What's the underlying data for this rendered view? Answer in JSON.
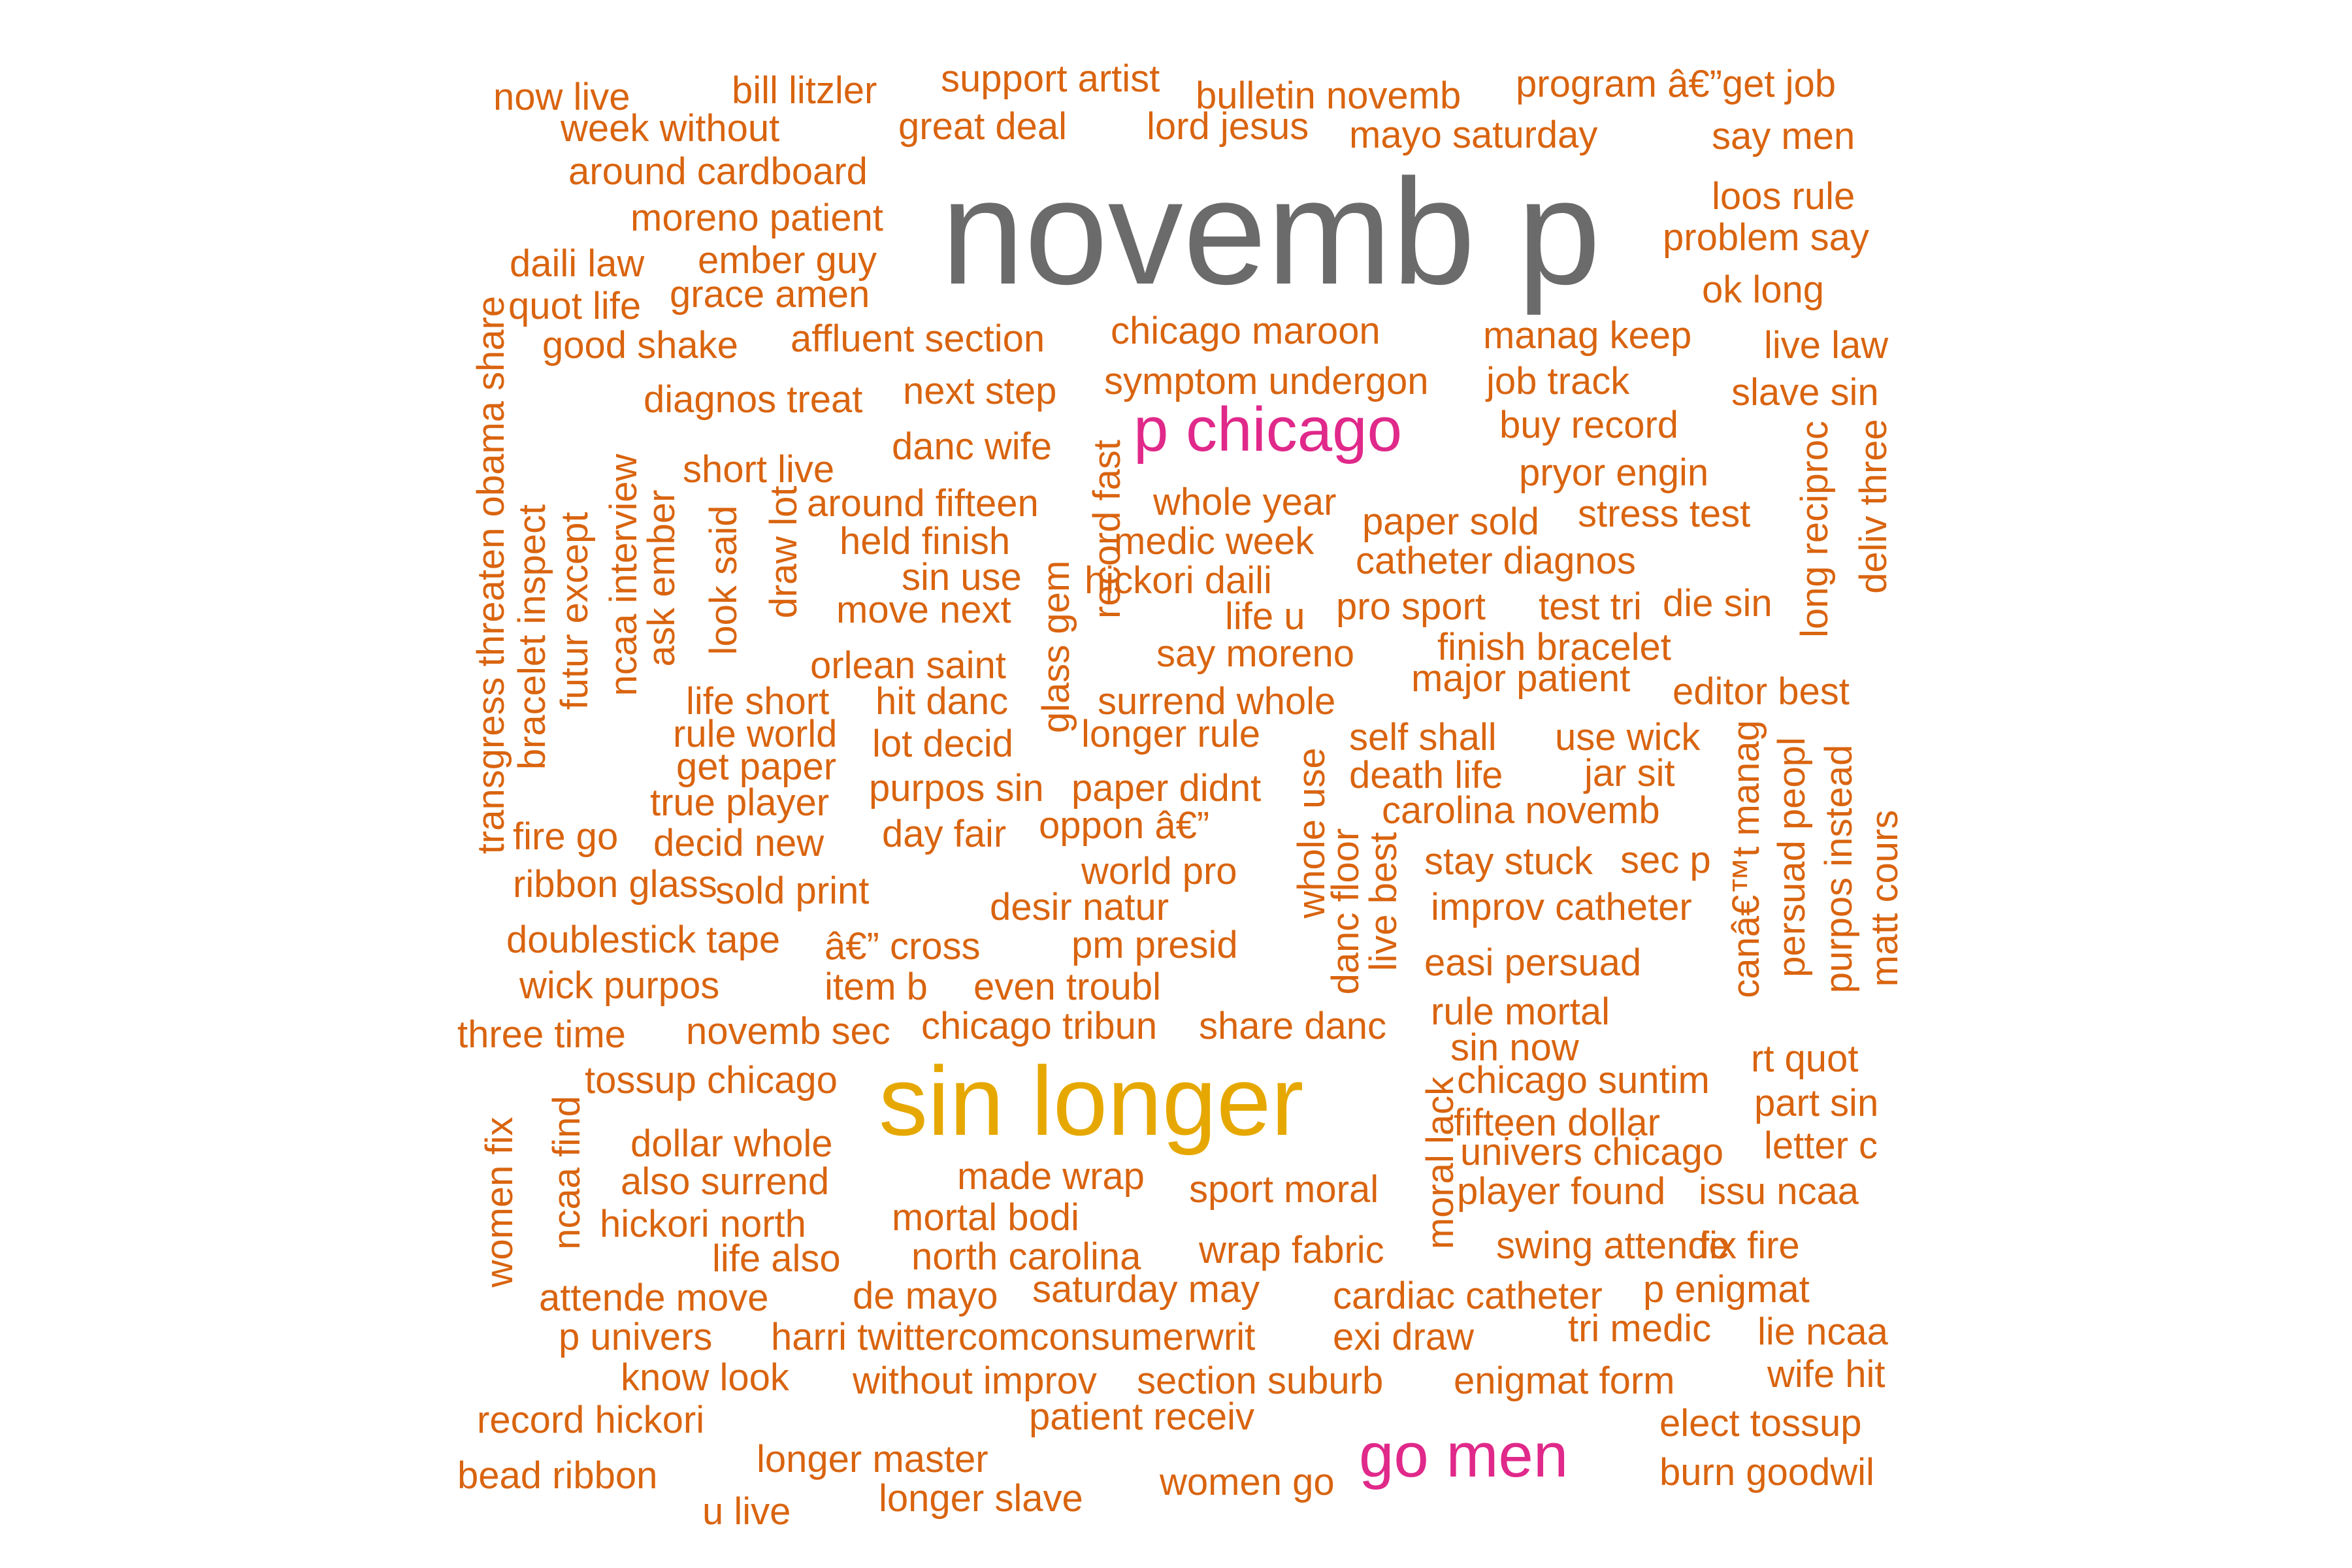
{
  "colors": {
    "primary": "#6b6b6b",
    "secondary": "#e6a800",
    "tertiary": "#e0298a",
    "small": "#d9640f",
    "background": "#ffffff"
  },
  "words": [
    {
      "text": "novemb p",
      "color": "primary",
      "rotate": false
    },
    {
      "text": "sin longer",
      "color": "secondary",
      "rotate": false
    },
    {
      "text": "p chicago",
      "color": "tertiary",
      "rotate": false
    },
    {
      "text": "go men",
      "color": "tertiary",
      "rotate": false
    },
    {
      "text": "now live",
      "color": "small",
      "rotate": false
    },
    {
      "text": "bill litzler",
      "color": "small",
      "rotate": false
    },
    {
      "text": "support artist",
      "color": "small",
      "rotate": false
    },
    {
      "text": "bulletin novemb",
      "color": "small",
      "rotate": false
    },
    {
      "text": "program â€”get job",
      "color": "small",
      "rotate": false
    },
    {
      "text": "week without",
      "color": "small",
      "rotate": false
    },
    {
      "text": "great deal",
      "color": "small",
      "rotate": false
    },
    {
      "text": "lord jesus",
      "color": "small",
      "rotate": false
    },
    {
      "text": "mayo saturday",
      "color": "small",
      "rotate": false
    },
    {
      "text": "say men",
      "color": "small",
      "rotate": false
    },
    {
      "text": "around cardboard",
      "color": "small",
      "rotate": false
    },
    {
      "text": "loos rule",
      "color": "small",
      "rotate": false
    },
    {
      "text": "moreno patient",
      "color": "small",
      "rotate": false
    },
    {
      "text": "problem say",
      "color": "small",
      "rotate": false
    },
    {
      "text": "daili law",
      "color": "small",
      "rotate": false
    },
    {
      "text": "ember guy",
      "color": "small",
      "rotate": false
    },
    {
      "text": "grace amen",
      "color": "small",
      "rotate": false
    },
    {
      "text": "ok long",
      "color": "small",
      "rotate": false
    },
    {
      "text": "quot life",
      "color": "small",
      "rotate": false
    },
    {
      "text": "affluent section",
      "color": "small",
      "rotate": false
    },
    {
      "text": "chicago maroon",
      "color": "small",
      "rotate": false
    },
    {
      "text": "manag keep",
      "color": "small",
      "rotate": false
    },
    {
      "text": "good shake",
      "color": "small",
      "rotate": false
    },
    {
      "text": "live law",
      "color": "small",
      "rotate": false
    },
    {
      "text": "symptom undergon",
      "color": "small",
      "rotate": false
    },
    {
      "text": "job track",
      "color": "small",
      "rotate": false
    },
    {
      "text": "diagnos treat",
      "color": "small",
      "rotate": false
    },
    {
      "text": "next step",
      "color": "small",
      "rotate": false
    },
    {
      "text": "slave sin",
      "color": "small",
      "rotate": false
    },
    {
      "text": "buy record",
      "color": "small",
      "rotate": false
    },
    {
      "text": "danc wife",
      "color": "small",
      "rotate": false
    },
    {
      "text": "short live",
      "color": "small",
      "rotate": false
    },
    {
      "text": "pryor engin",
      "color": "small",
      "rotate": false
    },
    {
      "text": "around fifteen",
      "color": "small",
      "rotate": false
    },
    {
      "text": "whole year",
      "color": "small",
      "rotate": false
    },
    {
      "text": "stress test",
      "color": "small",
      "rotate": false
    },
    {
      "text": "paper sold",
      "color": "small",
      "rotate": false
    },
    {
      "text": "held finish",
      "color": "small",
      "rotate": false
    },
    {
      "text": "medic week",
      "color": "small",
      "rotate": false
    },
    {
      "text": "catheter diagnos",
      "color": "small",
      "rotate": false
    },
    {
      "text": "sin use",
      "color": "small",
      "rotate": false
    },
    {
      "text": "hickori daili",
      "color": "small",
      "rotate": false
    },
    {
      "text": "move next",
      "color": "small",
      "rotate": false
    },
    {
      "text": "life u",
      "color": "small",
      "rotate": false
    },
    {
      "text": "pro sport",
      "color": "small",
      "rotate": false
    },
    {
      "text": "test tri",
      "color": "small",
      "rotate": false
    },
    {
      "text": "die sin",
      "color": "small",
      "rotate": false
    },
    {
      "text": "say moreno",
      "color": "small",
      "rotate": false
    },
    {
      "text": "finish bracelet",
      "color": "small",
      "rotate": false
    },
    {
      "text": "orlean saint",
      "color": "small",
      "rotate": false
    },
    {
      "text": "major patient",
      "color": "small",
      "rotate": false
    },
    {
      "text": "life short",
      "color": "small",
      "rotate": false
    },
    {
      "text": "hit danc",
      "color": "small",
      "rotate": false
    },
    {
      "text": "surrend whole",
      "color": "small",
      "rotate": false
    },
    {
      "text": "editor best",
      "color": "small",
      "rotate": false
    },
    {
      "text": "rule world",
      "color": "small",
      "rotate": false
    },
    {
      "text": "longer rule",
      "color": "small",
      "rotate": false
    },
    {
      "text": "self shall",
      "color": "small",
      "rotate": false
    },
    {
      "text": "use wick",
      "color": "small",
      "rotate": false
    },
    {
      "text": "get paper",
      "color": "small",
      "rotate": false
    },
    {
      "text": "lot decid",
      "color": "small",
      "rotate": false
    },
    {
      "text": "death life",
      "color": "small",
      "rotate": false
    },
    {
      "text": "jar sit",
      "color": "small",
      "rotate": false
    },
    {
      "text": "true player",
      "color": "small",
      "rotate": false
    },
    {
      "text": "purpos sin",
      "color": "small",
      "rotate": false
    },
    {
      "text": "paper didnt",
      "color": "small",
      "rotate": false
    },
    {
      "text": "carolina novemb",
      "color": "small",
      "rotate": false
    },
    {
      "text": "oppon â€”",
      "color": "small",
      "rotate": false
    },
    {
      "text": "fire go",
      "color": "small",
      "rotate": false
    },
    {
      "text": "decid new",
      "color": "small",
      "rotate": false
    },
    {
      "text": "day fair",
      "color": "small",
      "rotate": false
    },
    {
      "text": "stay stuck",
      "color": "small",
      "rotate": false
    },
    {
      "text": "sec p",
      "color": "small",
      "rotate": false
    },
    {
      "text": "ribbon glass",
      "color": "small",
      "rotate": false
    },
    {
      "text": "sold print",
      "color": "small",
      "rotate": false
    },
    {
      "text": "world pro",
      "color": "small",
      "rotate": false
    },
    {
      "text": "desir natur",
      "color": "small",
      "rotate": false
    },
    {
      "text": "improv catheter",
      "color": "small",
      "rotate": false
    },
    {
      "text": "doublestick tape",
      "color": "small",
      "rotate": false
    },
    {
      "text": "â€” cross",
      "color": "small",
      "rotate": false
    },
    {
      "text": "pm presid",
      "color": "small",
      "rotate": false
    },
    {
      "text": "easi persuad",
      "color": "small",
      "rotate": false
    },
    {
      "text": "wick purpos",
      "color": "small",
      "rotate": false
    },
    {
      "text": "item b",
      "color": "small",
      "rotate": false
    },
    {
      "text": "even troubl",
      "color": "small",
      "rotate": false
    },
    {
      "text": "rule mortal",
      "color": "small",
      "rotate": false
    },
    {
      "text": "three time",
      "color": "small",
      "rotate": false
    },
    {
      "text": "novemb sec",
      "color": "small",
      "rotate": false
    },
    {
      "text": "chicago tribun",
      "color": "small",
      "rotate": false
    },
    {
      "text": "share danc",
      "color": "small",
      "rotate": false
    },
    {
      "text": "sin now",
      "color": "small",
      "rotate": false
    },
    {
      "text": "rt quot",
      "color": "small",
      "rotate": false
    },
    {
      "text": "tossup chicago",
      "color": "small",
      "rotate": false
    },
    {
      "text": "chicago suntim",
      "color": "small",
      "rotate": false
    },
    {
      "text": "part sin",
      "color": "small",
      "rotate": false
    },
    {
      "text": "fifteen dollar",
      "color": "small",
      "rotate": false
    },
    {
      "text": "dollar whole",
      "color": "small",
      "rotate": false
    },
    {
      "text": "univers chicago",
      "color": "small",
      "rotate": false
    },
    {
      "text": "letter c",
      "color": "small",
      "rotate": false
    },
    {
      "text": "also surrend",
      "color": "small",
      "rotate": false
    },
    {
      "text": "made wrap",
      "color": "small",
      "rotate": false
    },
    {
      "text": "sport moral",
      "color": "small",
      "rotate": false
    },
    {
      "text": "player found",
      "color": "small",
      "rotate": false
    },
    {
      "text": "issu ncaa",
      "color": "small",
      "rotate": false
    },
    {
      "text": "hickori north",
      "color": "small",
      "rotate": false
    },
    {
      "text": "mortal bodi",
      "color": "small",
      "rotate": false
    },
    {
      "text": "life also",
      "color": "small",
      "rotate": false
    },
    {
      "text": "north carolina",
      "color": "small",
      "rotate": false
    },
    {
      "text": "wrap fabric",
      "color": "small",
      "rotate": false
    },
    {
      "text": "swing attende",
      "color": "small",
      "rotate": false
    },
    {
      "text": "fix fire",
      "color": "small",
      "rotate": false
    },
    {
      "text": "attende move",
      "color": "small",
      "rotate": false
    },
    {
      "text": "de mayo",
      "color": "small",
      "rotate": false
    },
    {
      "text": "saturday may",
      "color": "small",
      "rotate": false
    },
    {
      "text": "cardiac catheter",
      "color": "small",
      "rotate": false
    },
    {
      "text": "p enigmat",
      "color": "small",
      "rotate": false
    },
    {
      "text": "p univers",
      "color": "small",
      "rotate": false
    },
    {
      "text": "harri twittercomconsumerwrit",
      "color": "small",
      "rotate": false
    },
    {
      "text": "exi draw",
      "color": "small",
      "rotate": false
    },
    {
      "text": "tri medic",
      "color": "small",
      "rotate": false
    },
    {
      "text": "lie ncaa",
      "color": "small",
      "rotate": false
    },
    {
      "text": "know look",
      "color": "small",
      "rotate": false
    },
    {
      "text": "without improv",
      "color": "small",
      "rotate": false
    },
    {
      "text": "section suburb",
      "color": "small",
      "rotate": false
    },
    {
      "text": "enigmat form",
      "color": "small",
      "rotate": false
    },
    {
      "text": "wife hit",
      "color": "small",
      "rotate": false
    },
    {
      "text": "record hickori",
      "color": "small",
      "rotate": false
    },
    {
      "text": "patient receiv",
      "color": "small",
      "rotate": false
    },
    {
      "text": "elect tossup",
      "color": "small",
      "rotate": false
    },
    {
      "text": "longer master",
      "color": "small",
      "rotate": false
    },
    {
      "text": "bead ribbon",
      "color": "small",
      "rotate": false
    },
    {
      "text": "women go",
      "color": "small",
      "rotate": false
    },
    {
      "text": "burn goodwil",
      "color": "small",
      "rotate": false
    },
    {
      "text": "longer slave",
      "color": "small",
      "rotate": false
    },
    {
      "text": "u live",
      "color": "small",
      "rotate": false
    },
    {
      "text": "transgress threaten obama share",
      "color": "small",
      "rotate": true
    },
    {
      "text": "bracelet inspect",
      "color": "small",
      "rotate": true
    },
    {
      "text": "futur except",
      "color": "small",
      "rotate": true
    },
    {
      "text": "ncaa interview",
      "color": "small",
      "rotate": true
    },
    {
      "text": "ask ember",
      "color": "small",
      "rotate": true
    },
    {
      "text": "look said",
      "color": "small",
      "rotate": true
    },
    {
      "text": "draw lot",
      "color": "small",
      "rotate": true
    },
    {
      "text": "glass gem",
      "color": "small",
      "rotate": true
    },
    {
      "text": "record fast",
      "color": "small",
      "rotate": true
    },
    {
      "text": "whole use",
      "color": "small",
      "rotate": true
    },
    {
      "text": "danc floor",
      "color": "small",
      "rotate": true
    },
    {
      "text": "live best",
      "color": "small",
      "rotate": true
    },
    {
      "text": "long reciproc",
      "color": "small",
      "rotate": true
    },
    {
      "text": "deliv three",
      "color": "small",
      "rotate": true
    },
    {
      "text": "canâ€™t manag",
      "color": "small",
      "rotate": true
    },
    {
      "text": "persuad peopl",
      "color": "small",
      "rotate": true
    },
    {
      "text": "purpos instead",
      "color": "small",
      "rotate": true
    },
    {
      "text": "matt cours",
      "color": "small",
      "rotate": true
    },
    {
      "text": "women fix",
      "color": "small",
      "rotate": true
    },
    {
      "text": "ncaa find",
      "color": "small",
      "rotate": true
    },
    {
      "text": "moral lack",
      "color": "small",
      "rotate": true
    }
  ]
}
